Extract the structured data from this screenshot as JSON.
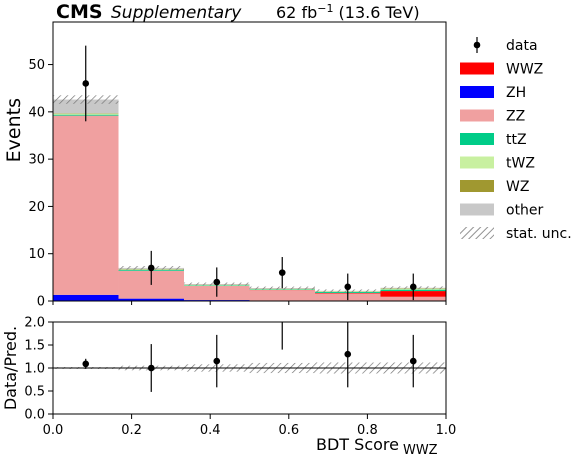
{
  "header": {
    "experiment": "CMS",
    "label": "Supplementary",
    "lumi_prefix": "62 fb",
    "lumi_exp": "−1",
    "lumi_suffix": " (13.6 TeV)"
  },
  "colors": {
    "WWZ": "#ff0000",
    "ZH": "#0000ff",
    "ZZ": "#f0a0a0",
    "ttZ": "#00cc88",
    "tWZ": "#c8f0a0",
    "WZ": "#a09830",
    "other": "#c8c8c8",
    "unc_hatch": "#777777"
  },
  "chart_data": [
    {
      "type": "bar",
      "stacked": true,
      "bin_edges": [
        0.0,
        0.1667,
        0.3333,
        0.5,
        0.6667,
        0.8333,
        1.0
      ],
      "ylabel": "Events",
      "ylim": [
        0,
        59
      ],
      "yticks": [
        0,
        10,
        20,
        30,
        40,
        50
      ],
      "xlim": [
        0,
        1
      ],
      "series": [
        {
          "name": "ZH",
          "values": [
            1.3,
            0.5,
            0.2,
            0.1,
            0.1,
            0.0
          ]
        },
        {
          "name": "ZZ",
          "values": [
            37.9,
            5.9,
            3.0,
            2.2,
            1.5,
            0.9
          ]
        },
        {
          "name": "WWZ",
          "values": [
            0.0,
            0.0,
            0.0,
            0.05,
            0.1,
            1.2
          ]
        },
        {
          "name": "ttZ",
          "values": [
            0.2,
            0.2,
            0.1,
            0.1,
            0.2,
            0.3
          ]
        },
        {
          "name": "tWZ",
          "values": [
            0.2,
            0.1,
            0.1,
            0.1,
            0.1,
            0.2
          ]
        },
        {
          "name": "WZ",
          "values": [
            0.1,
            0.1,
            0.05,
            0.05,
            0.05,
            0.1
          ]
        },
        {
          "name": "other",
          "values": [
            2.9,
            0.2,
            0.15,
            0.15,
            0.1,
            0.1
          ]
        }
      ],
      "stat_unc": [
        0.9,
        0.4,
        0.3,
        0.3,
        0.3,
        0.3
      ],
      "data": {
        "name": "data",
        "x": [
          0.0833,
          0.25,
          0.4167,
          0.5833,
          0.75,
          0.9167
        ],
        "y": [
          46,
          7,
          4,
          6,
          3,
          3
        ],
        "err": [
          8,
          3.6,
          3.1,
          3.3,
          2.8,
          2.8
        ]
      },
      "legend": {
        "placement": "right",
        "entries": [
          {
            "label": "data",
            "kind": "data"
          },
          {
            "label": "WWZ",
            "kind": "box",
            "color_key": "WWZ"
          },
          {
            "label": "ZH",
            "kind": "box",
            "color_key": "ZH"
          },
          {
            "label": "ZZ",
            "kind": "box",
            "color_key": "ZZ"
          },
          {
            "label": "ttZ",
            "kind": "box",
            "color_key": "ttZ"
          },
          {
            "label": "tWZ",
            "kind": "box",
            "color_key": "tWZ"
          },
          {
            "label": "WZ",
            "kind": "box",
            "color_key": "WZ"
          },
          {
            "label": "other",
            "kind": "box",
            "color_key": "other"
          },
          {
            "label": "stat. unc.",
            "kind": "hatch"
          }
        ]
      }
    },
    {
      "type": "scatter",
      "ylabel": "Data/Pred.",
      "xlabel_main": "BDT Score",
      "xlabel_sub": "WWZ",
      "ylim": [
        0,
        2
      ],
      "yticks": [
        0.0,
        0.5,
        1.0,
        1.5,
        2.0
      ],
      "xlim": [
        0,
        1
      ],
      "xticks": [
        0.0,
        0.2,
        0.4,
        0.6,
        0.8,
        1.0
      ],
      "reference_line": 1.0,
      "x": [
        0.0833,
        0.25,
        0.4167,
        0.5833,
        0.75,
        0.9167
      ],
      "y": [
        1.09,
        1.0,
        1.15,
        null,
        1.3,
        1.15
      ],
      "err": [
        0.11,
        0.52,
        0.57,
        null,
        0.72,
        0.57
      ],
      "bars_only": [
        null,
        null,
        null,
        {
          "y_low": 1.4,
          "y_high": 2.0
        },
        null,
        null
      ],
      "ratio_unc": [
        0.02,
        0.05,
        0.08,
        0.11,
        0.12,
        0.12
      ]
    }
  ]
}
